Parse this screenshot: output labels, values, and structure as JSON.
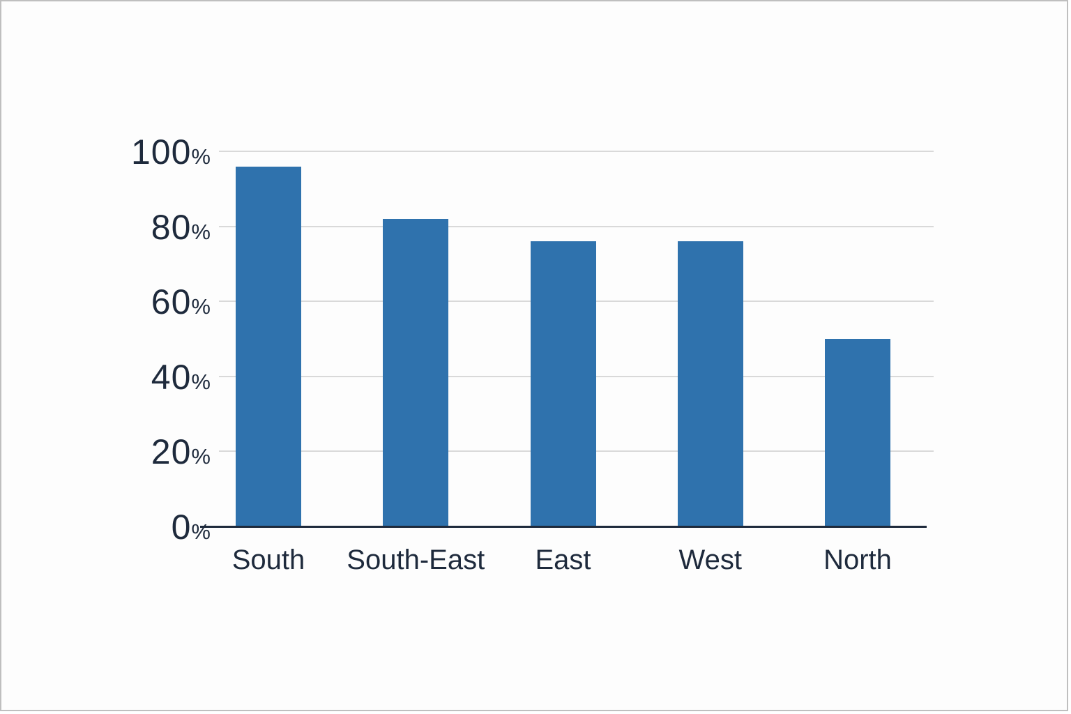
{
  "chart_data": {
    "type": "bar",
    "categories": [
      "South",
      "South-East",
      "East",
      "West",
      "North"
    ],
    "values": [
      96,
      82,
      76,
      76,
      50
    ],
    "value_unit": "%",
    "title": "",
    "xlabel": "",
    "ylabel": "",
    "ylim": [
      0,
      100
    ],
    "yticks": [
      0,
      20,
      40,
      60,
      80,
      100
    ],
    "ytick_suffix": "%",
    "grid": "horizontal",
    "legend": "none",
    "colors": {
      "bar": "#2f72ad",
      "text": "#1e2a3c",
      "gridline": "#d9d9d9",
      "axis_line": "#1e2a3c",
      "background": "#fdfdfd"
    }
  }
}
